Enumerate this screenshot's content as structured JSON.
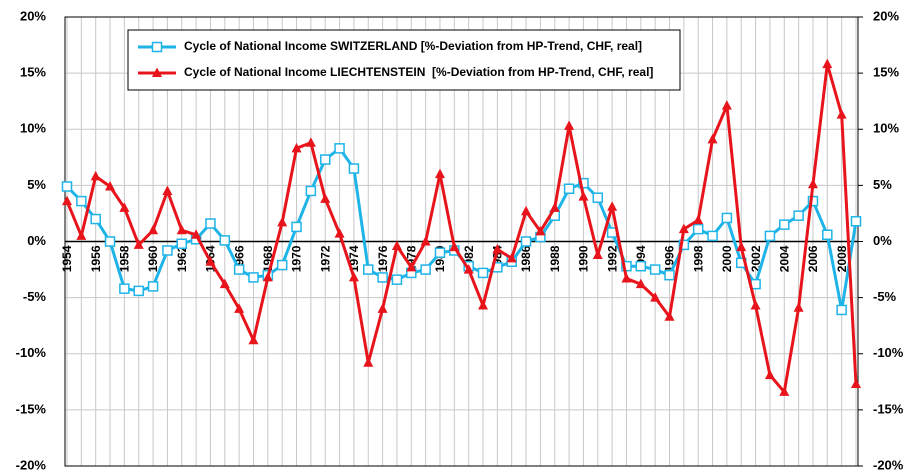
{
  "chart_data": {
    "type": "line",
    "x": [
      1954,
      1955,
      1956,
      1957,
      1958,
      1959,
      1960,
      1961,
      1962,
      1963,
      1964,
      1965,
      1966,
      1967,
      1968,
      1969,
      1970,
      1971,
      1972,
      1973,
      1974,
      1975,
      1976,
      1977,
      1978,
      1979,
      1980,
      1981,
      1982,
      1983,
      1984,
      1985,
      1986,
      1987,
      1988,
      1989,
      1990,
      1991,
      1992,
      1993,
      1994,
      1995,
      1996,
      1997,
      1998,
      1999,
      2000,
      2001,
      2002,
      2003,
      2004,
      2005,
      2006,
      2007,
      2008,
      2009
    ],
    "xlim": [
      1954,
      2009
    ],
    "xticks": [
      1954,
      1956,
      1958,
      1960,
      1962,
      1964,
      1966,
      1968,
      1970,
      1972,
      1974,
      1976,
      1978,
      1980,
      1982,
      1984,
      1986,
      1988,
      1990,
      1992,
      1994,
      1996,
      1998,
      2000,
      2002,
      2004,
      2006,
      2008
    ],
    "ylim": [
      -20,
      20
    ],
    "yticks": [
      {
        "value": -20,
        "label": "-20%"
      },
      {
        "value": -15,
        "label": "-15%"
      },
      {
        "value": -10,
        "label": "-10%"
      },
      {
        "value": -5,
        "label": "-5%"
      },
      {
        "value": 0,
        "label": "0%"
      },
      {
        "value": 5,
        "label": "5%"
      },
      {
        "value": 10,
        "label": "10%"
      },
      {
        "value": 15,
        "label": "15%"
      },
      {
        "value": 20,
        "label": "20%"
      }
    ],
    "y2lim": [
      -20,
      20
    ],
    "y2ticks": [
      {
        "value": -20,
        "label": "-20%"
      },
      {
        "value": -15,
        "label": "-15%"
      },
      {
        "value": -10,
        "label": "-10%"
      },
      {
        "value": -5,
        "label": "-5%"
      },
      {
        "value": 0,
        "label": "0%"
      },
      {
        "value": 5,
        "label": "5%"
      },
      {
        "value": 10,
        "label": "10%"
      },
      {
        "value": 15,
        "label": "15%"
      },
      {
        "value": 20,
        "label": "20%"
      }
    ],
    "grid": true,
    "legend": "upper left",
    "series": [
      {
        "name": "Cycle of National Income SWITZERLAND [%-Deviation from HP-Trend, CHF, real]",
        "color": "#1fb4e8",
        "marker": "square",
        "values": [
          4.9,
          3.6,
          2.0,
          0.0,
          -4.2,
          -4.4,
          -4.0,
          -0.8,
          -0.2,
          0.2,
          1.6,
          0.1,
          -2.5,
          -3.2,
          -3.0,
          -2.1,
          1.3,
          4.5,
          7.3,
          8.3,
          6.5,
          -2.5,
          -3.2,
          -3.4,
          -2.8,
          -2.5,
          -1.0,
          -0.8,
          -2.2,
          -2.8,
          -2.3,
          -1.8,
          0.0,
          0.4,
          2.3,
          4.7,
          5.2,
          3.9,
          0.8,
          -2.2,
          -2.2,
          -2.5,
          -3.0,
          -0.3,
          1.1,
          0.5,
          2.1,
          -1.9,
          -3.8,
          0.5,
          1.5,
          2.3,
          3.6,
          0.6,
          -6.1,
          1.8
        ]
      },
      {
        "name": "Cycle of National Income LIECHTENSTEIN  [%-Deviation from HP-Trend, CHF, real]",
        "color": "#e8141b",
        "marker": "triangle",
        "values": [
          3.6,
          0.5,
          5.8,
          4.9,
          3.0,
          -0.3,
          1.0,
          4.5,
          1.0,
          0.6,
          -1.8,
          -3.8,
          -6.0,
          -8.8,
          -3.2,
          1.7,
          8.3,
          8.8,
          3.8,
          0.7,
          -3.2,
          -10.8,
          -6.0,
          -0.4,
          -2.3,
          0.0,
          6.0,
          -0.5,
          -2.5,
          -5.7,
          -0.7,
          -1.5,
          2.7,
          0.9,
          3.0,
          10.3,
          4.0,
          -1.2,
          3.1,
          -3.3,
          -3.8,
          -5.0,
          -6.7,
          1.1,
          1.9,
          9.1,
          12.1,
          -0.5,
          -5.7,
          -11.9,
          -13.4,
          -5.9,
          5.1,
          15.8,
          11.3,
          -12.7
        ]
      }
    ]
  }
}
